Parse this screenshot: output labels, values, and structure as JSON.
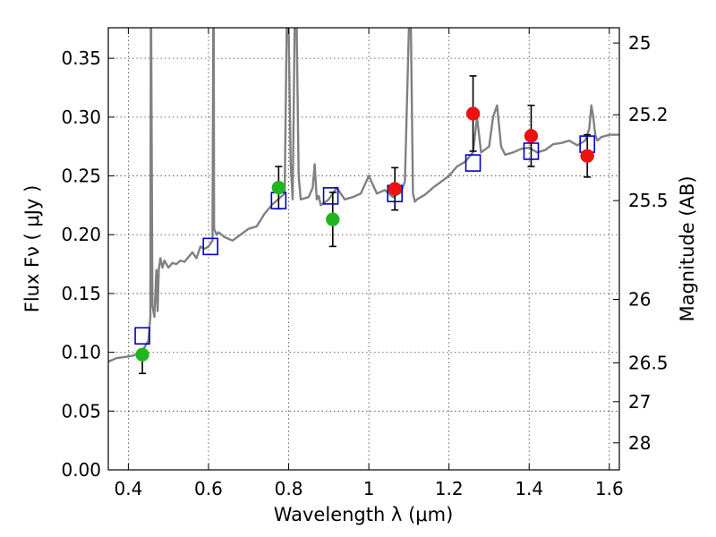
{
  "chart_data": {
    "type": "scatter",
    "xlabel": "Wavelength  λ (μm)",
    "ylabel": "Flux  Fν  ( μJy )",
    "ylabel_right": "Magnitude (AB)",
    "xlim": [
      0.35,
      1.625
    ],
    "ylim": [
      0.0,
      0.376
    ],
    "grid": true,
    "x_ticks": [
      0.4,
      0.6,
      0.8,
      1.0,
      1.2,
      1.4,
      1.6
    ],
    "x_tick_labels": [
      "0.4",
      "0.6",
      "0.8",
      "1",
      "1.2",
      "1.4",
      "1.6"
    ],
    "y_ticks": [
      0.0,
      0.05,
      0.1,
      0.15,
      0.2,
      0.25,
      0.3,
      0.35
    ],
    "y_tick_labels": [
      "0.00",
      "0.05",
      "0.10",
      "0.15",
      "0.20",
      "0.25",
      "0.30",
      "0.35"
    ],
    "right_ticks": [
      {
        "label": "25",
        "flux": 0.363
      },
      {
        "label": "25.2",
        "flux": 0.302
      },
      {
        "label": "25.5",
        "flux": 0.229
      },
      {
        "label": "26",
        "flux": 0.145
      },
      {
        "label": "26.5",
        "flux": 0.091
      },
      {
        "label": "27",
        "flux": 0.058
      },
      {
        "label": "28",
        "flux": 0.023
      }
    ],
    "colors": {
      "model": "#808080",
      "green": "#22b522",
      "red": "#ee1111",
      "square": "#0000cc",
      "errorbar": "#000000"
    },
    "model_spectrum": {
      "x": [
        0.35,
        0.37,
        0.39,
        0.41,
        0.43,
        0.44,
        0.45,
        0.455,
        0.456,
        0.457,
        0.46,
        0.465,
        0.47,
        0.473,
        0.476,
        0.48,
        0.485,
        0.49,
        0.5,
        0.51,
        0.52,
        0.53,
        0.54,
        0.55,
        0.56,
        0.57,
        0.58,
        0.59,
        0.6,
        0.61,
        0.612,
        0.613,
        0.614,
        0.62,
        0.625,
        0.64,
        0.66,
        0.68,
        0.7,
        0.72,
        0.74,
        0.76,
        0.78,
        0.79,
        0.795,
        0.8,
        0.805,
        0.81,
        0.815,
        0.82,
        0.825,
        0.83,
        0.85,
        0.86,
        0.865,
        0.87,
        0.875,
        0.88,
        0.9,
        0.92,
        0.94,
        0.96,
        0.98,
        1.0,
        1.02,
        1.04,
        1.06,
        1.08,
        1.09,
        1.1,
        1.105,
        1.11,
        1.115,
        1.12,
        1.14,
        1.16,
        1.18,
        1.2,
        1.22,
        1.24,
        1.26,
        1.27,
        1.28,
        1.3,
        1.31,
        1.32,
        1.33,
        1.34,
        1.36,
        1.38,
        1.4,
        1.42,
        1.44,
        1.46,
        1.48,
        1.5,
        1.52,
        1.54,
        1.55,
        1.555,
        1.56,
        1.565,
        1.57,
        1.58,
        1.6,
        1.625
      ],
      "y": [
        0.092,
        0.095,
        0.096,
        0.097,
        0.1,
        0.104,
        0.11,
        0.13,
        0.376,
        0.376,
        0.14,
        0.13,
        0.17,
        0.135,
        0.17,
        0.18,
        0.172,
        0.178,
        0.172,
        0.176,
        0.175,
        0.178,
        0.177,
        0.181,
        0.185,
        0.18,
        0.19,
        0.188,
        0.19,
        0.195,
        0.376,
        0.376,
        0.205,
        0.2,
        0.202,
        0.198,
        0.195,
        0.2,
        0.205,
        0.207,
        0.218,
        0.226,
        0.232,
        0.235,
        0.376,
        0.376,
        0.26,
        0.23,
        0.376,
        0.376,
        0.25,
        0.23,
        0.232,
        0.24,
        0.26,
        0.23,
        0.233,
        0.225,
        0.23,
        0.24,
        0.23,
        0.232,
        0.235,
        0.25,
        0.235,
        0.238,
        0.232,
        0.236,
        0.245,
        0.376,
        0.376,
        0.235,
        0.228,
        0.23,
        0.234,
        0.24,
        0.245,
        0.25,
        0.258,
        0.262,
        0.27,
        0.3,
        0.27,
        0.275,
        0.3,
        0.31,
        0.275,
        0.268,
        0.27,
        0.273,
        0.274,
        0.27,
        0.272,
        0.277,
        0.278,
        0.28,
        0.276,
        0.28,
        0.29,
        0.31,
        0.3,
        0.285,
        0.28,
        0.283,
        0.285,
        0.285
      ]
    },
    "series_green": [
      {
        "x": 0.435,
        "y": 0.098,
        "err_lo": 0.016,
        "err_hi": 0.0
      },
      {
        "x": 0.775,
        "y": 0.24,
        "err_lo": 0.018,
        "err_hi": 0.018
      },
      {
        "x": 0.91,
        "y": 0.213,
        "err_lo": 0.023,
        "err_hi": 0.023
      }
    ],
    "series_red": [
      {
        "x": 1.065,
        "y": 0.239,
        "err_lo": 0.018,
        "err_hi": 0.018
      },
      {
        "x": 1.26,
        "y": 0.303,
        "err_lo": 0.032,
        "err_hi": 0.032
      },
      {
        "x": 1.405,
        "y": 0.284,
        "err_lo": 0.026,
        "err_hi": 0.026
      },
      {
        "x": 1.545,
        "y": 0.267,
        "err_lo": 0.018,
        "err_hi": 0.018
      }
    ],
    "series_model_bands": [
      {
        "x": 0.435,
        "y": 0.114
      },
      {
        "x": 0.605,
        "y": 0.19
      },
      {
        "x": 0.775,
        "y": 0.229
      },
      {
        "x": 0.905,
        "y": 0.233
      },
      {
        "x": 1.065,
        "y": 0.235
      },
      {
        "x": 1.26,
        "y": 0.261
      },
      {
        "x": 1.405,
        "y": 0.271
      },
      {
        "x": 1.545,
        "y": 0.277
      }
    ]
  }
}
